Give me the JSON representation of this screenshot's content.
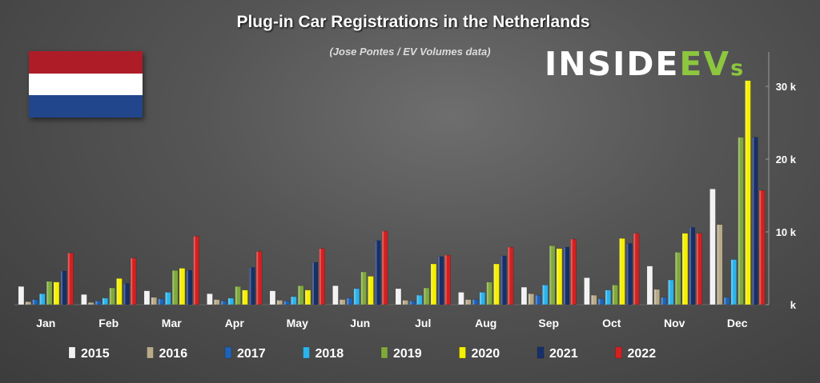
{
  "title": "Plug-in Car Registrations in the Netherlands",
  "subtitle": "(Jose Pontes / EV Volumes data)",
  "logo": {
    "text_white": "INSIDE",
    "text_green": "EV",
    "text_small": "s"
  },
  "flag_colors": [
    "#ae1c28",
    "#ffffff",
    "#21468b"
  ],
  "chart_data": {
    "type": "bar",
    "categories": [
      "Jan",
      "Feb",
      "Mar",
      "Apr",
      "May",
      "Jun",
      "Jul",
      "Aug",
      "Sep",
      "Oct",
      "Nov",
      "Dec"
    ],
    "ylim": [
      0,
      35000
    ],
    "ytick_values": [
      0,
      10000,
      20000,
      30000
    ],
    "ytick_labels": [
      "k",
      "10 k",
      "20 k",
      "30 k"
    ],
    "legend_position": "bottom",
    "series": [
      {
        "name": "2015",
        "color": "#f2f2f2",
        "values": [
          2500,
          1400,
          1900,
          1500,
          1900,
          2600,
          2200,
          1700,
          2400,
          3700,
          5300,
          15900
        ]
      },
      {
        "name": "2016",
        "color": "#b8ab8a",
        "values": [
          400,
          300,
          1000,
          700,
          600,
          700,
          600,
          700,
          1500,
          1300,
          2100,
          11000
        ]
      },
      {
        "name": "2017",
        "color": "#1f63b8",
        "values": [
          700,
          500,
          800,
          500,
          500,
          900,
          500,
          700,
          1300,
          800,
          1000,
          1000
        ]
      },
      {
        "name": "2018",
        "color": "#2bb3ec",
        "values": [
          1500,
          900,
          1700,
          900,
          1100,
          2200,
          1300,
          1700,
          2700,
          2000,
          3400,
          6200
        ]
      },
      {
        "name": "2019",
        "color": "#80a93c",
        "values": [
          3200,
          2300,
          4700,
          2500,
          2600,
          4500,
          2300,
          3100,
          8100,
          2700,
          7200,
          23000
        ]
      },
      {
        "name": "2020",
        "color": "#f5f000",
        "values": [
          3100,
          3600,
          5000,
          2000,
          2000,
          3900,
          5600,
          5600,
          7700,
          9100,
          9800,
          30800
        ]
      },
      {
        "name": "2021",
        "color": "#16306b",
        "values": [
          4600,
          2900,
          4700,
          5100,
          5800,
          8800,
          6600,
          6700,
          7900,
          8400,
          10600,
          23000
        ]
      },
      {
        "name": "2022",
        "color": "#d42020",
        "values": [
          7100,
          6400,
          9400,
          7300,
          7700,
          10100,
          6800,
          7900,
          9000,
          9800,
          9800,
          15700
        ]
      }
    ]
  }
}
